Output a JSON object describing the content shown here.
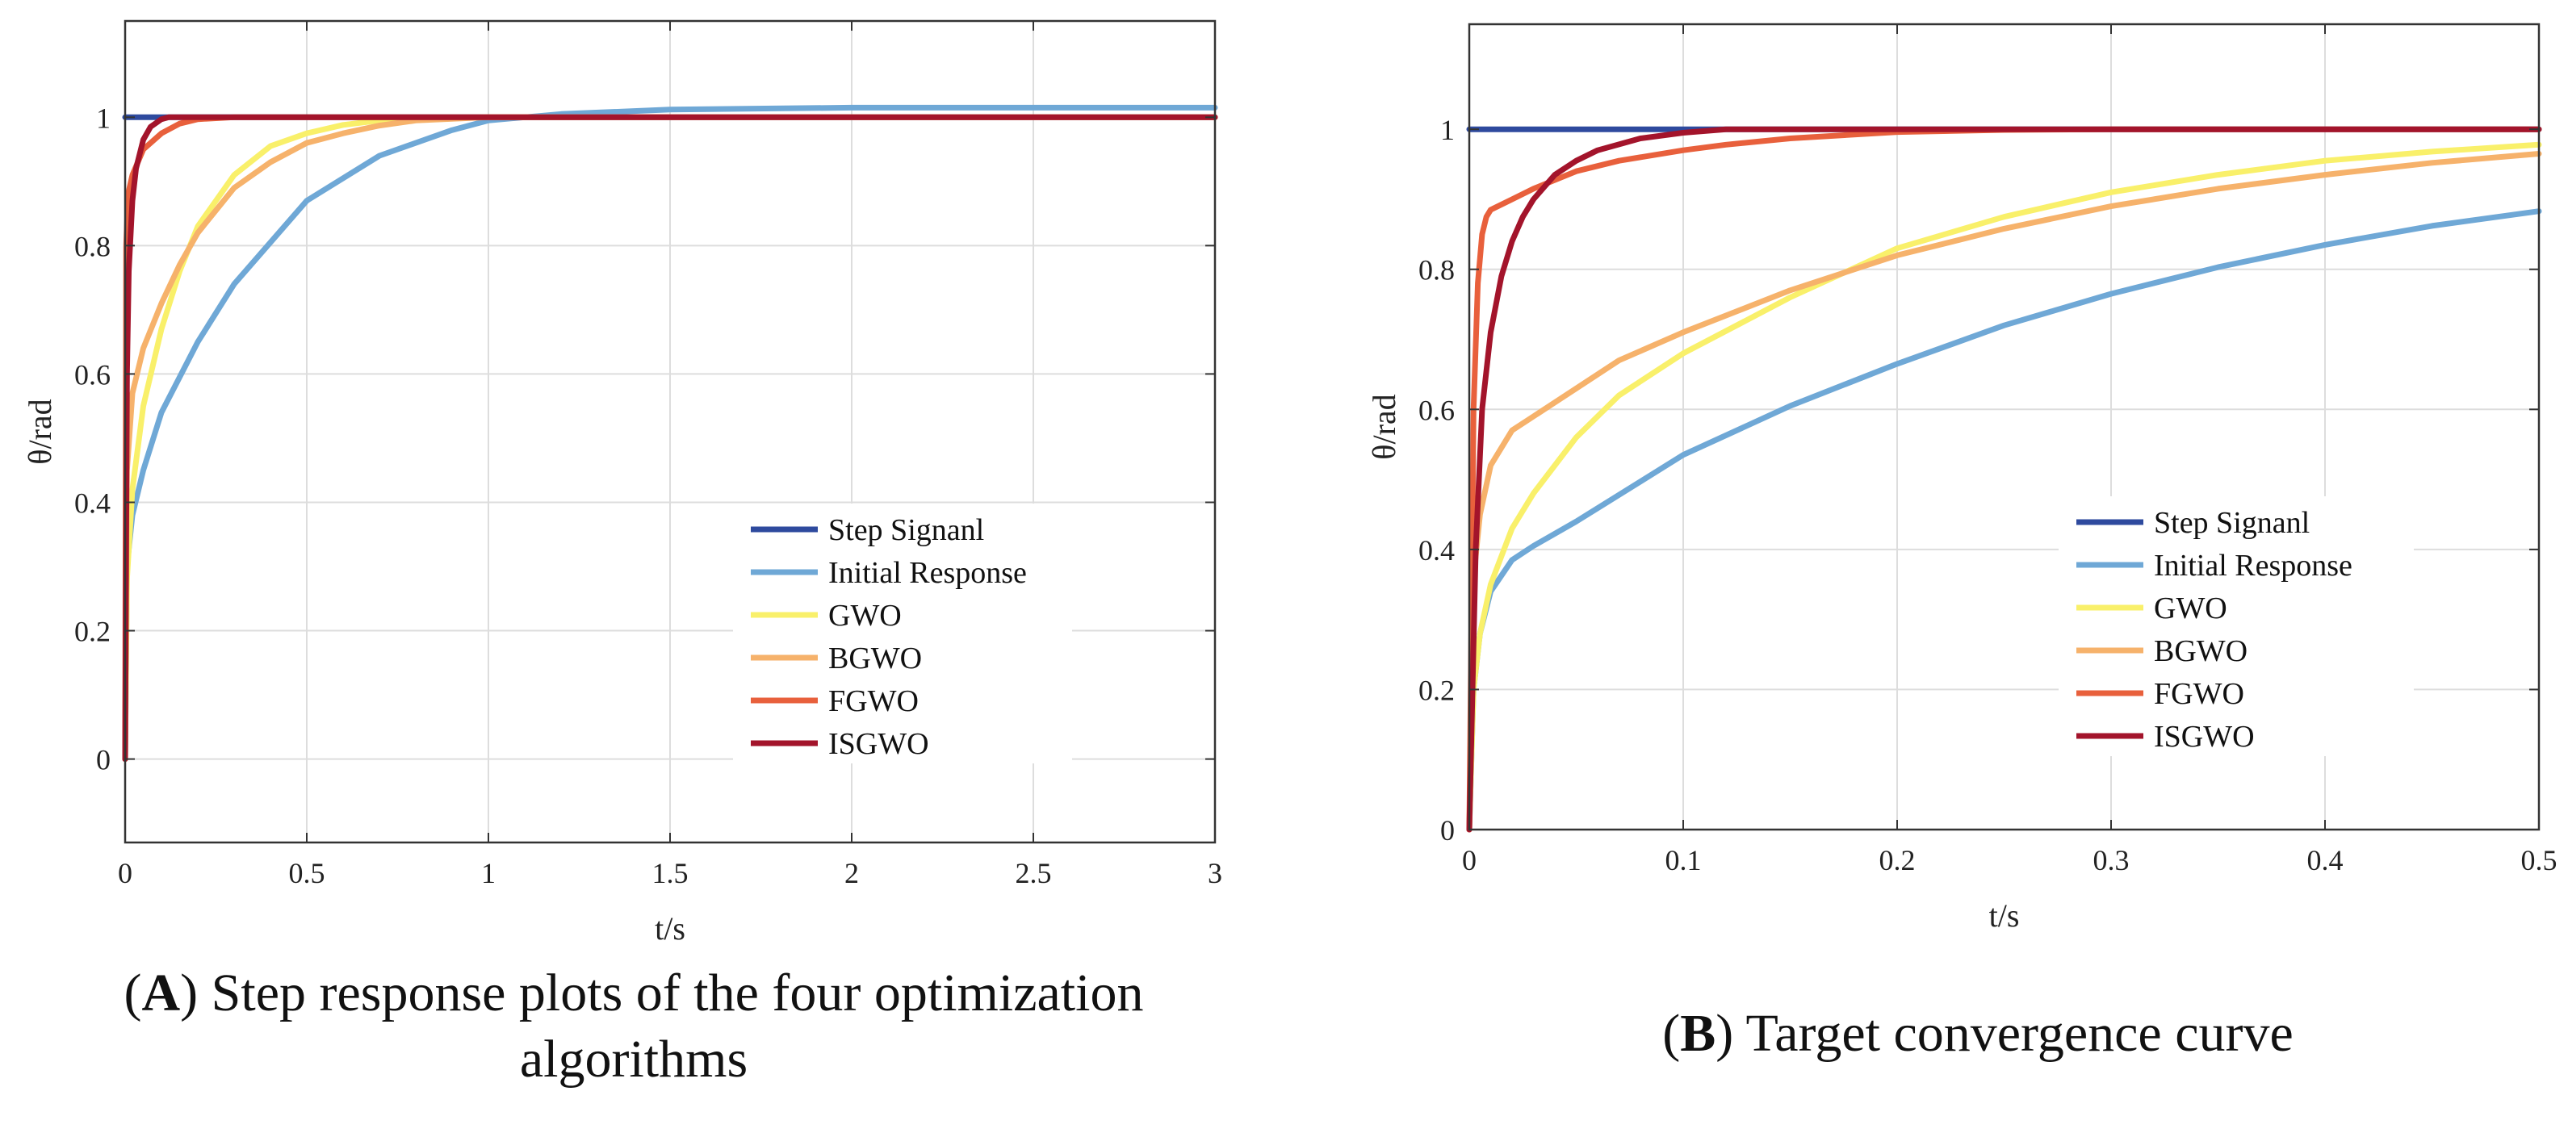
{
  "colors": {
    "Step Signanl": "#2e4a9e",
    "Initial Response": "#6fa8d6",
    "GWO": "#f9f06a",
    "BGWO": "#f6b26b",
    "FGWO": "#e8603c",
    "ISGWO": "#a3142b",
    "grid": "#dddddd",
    "axis": "#333333"
  },
  "captions": [
    {
      "letter": "A",
      "text": " Step response plots of the four optimization algorithms"
    },
    {
      "letter": "B",
      "text": " Target convergence curve"
    }
  ],
  "chart_data": [
    {
      "type": "line",
      "title": "",
      "xlabel": "t/s",
      "ylabel": "θ/rad",
      "xlim": [
        0,
        3
      ],
      "ylim": [
        -0.13,
        1.15
      ],
      "xticks": [
        0,
        0.5,
        1,
        1.5,
        2,
        2.5,
        3
      ],
      "xticklabels": [
        "0",
        "0.5",
        "1",
        "1.5",
        "2",
        "2.5",
        "3"
      ],
      "yticks": [
        0,
        0.2,
        0.4,
        0.6,
        0.8,
        1
      ],
      "yticklabels": [
        "0",
        "0.2",
        "0.4",
        "0.6",
        "0.8",
        "1"
      ],
      "grid": true,
      "legend": "lower-right",
      "series": [
        {
          "name": "Step Signanl",
          "x": [
            0,
            3
          ],
          "y": [
            1,
            1
          ]
        },
        {
          "name": "Initial Response",
          "x": [
            0,
            0.005,
            0.02,
            0.05,
            0.1,
            0.2,
            0.3,
            0.5,
            0.7,
            0.9,
            1.0,
            1.2,
            1.5,
            2.0,
            2.5,
            3.0
          ],
          "y": [
            0,
            0.3,
            0.38,
            0.45,
            0.54,
            0.65,
            0.74,
            0.87,
            0.94,
            0.98,
            0.995,
            1.005,
            1.012,
            1.015,
            1.015,
            1.015
          ]
        },
        {
          "name": "GWO",
          "x": [
            0,
            0.005,
            0.02,
            0.05,
            0.1,
            0.15,
            0.2,
            0.3,
            0.4,
            0.5,
            0.6,
            0.7,
            0.8,
            1.0,
            2.0,
            3.0
          ],
          "y": [
            0,
            0.28,
            0.42,
            0.55,
            0.67,
            0.76,
            0.83,
            0.91,
            0.955,
            0.975,
            0.988,
            0.995,
            0.998,
            1.0,
            1.0,
            1.0
          ]
        },
        {
          "name": "BGWO",
          "x": [
            0,
            0.005,
            0.02,
            0.05,
            0.1,
            0.15,
            0.2,
            0.3,
            0.4,
            0.5,
            0.6,
            0.7,
            0.8,
            1.0,
            2.0,
            3.0
          ],
          "y": [
            0,
            0.45,
            0.57,
            0.64,
            0.71,
            0.77,
            0.82,
            0.89,
            0.93,
            0.96,
            0.975,
            0.987,
            0.995,
            1.0,
            1.0,
            1.0
          ]
        },
        {
          "name": "FGWO",
          "x": [
            0,
            0.003,
            0.008,
            0.02,
            0.05,
            0.1,
            0.15,
            0.2,
            0.3,
            3.0
          ],
          "y": [
            0,
            0.8,
            0.88,
            0.91,
            0.95,
            0.975,
            0.99,
            0.997,
            1.0,
            1.0
          ]
        },
        {
          "name": "ISGWO",
          "x": [
            0,
            0.005,
            0.01,
            0.02,
            0.03,
            0.05,
            0.07,
            0.1,
            0.12,
            3.0
          ],
          "y": [
            0,
            0.6,
            0.76,
            0.87,
            0.92,
            0.965,
            0.985,
            0.997,
            1.0,
            1.0
          ]
        }
      ]
    },
    {
      "type": "line",
      "title": "",
      "xlabel": "t/s",
      "ylabel": "θ/rad",
      "xlim": [
        0,
        0.5
      ],
      "ylim": [
        0,
        1.15
      ],
      "xticks": [
        0,
        0.1,
        0.2,
        0.3,
        0.4,
        0.5
      ],
      "xticklabels": [
        "0",
        "0.1",
        "0.2",
        "0.3",
        "0.4",
        "0.5"
      ],
      "yticks": [
        0,
        0.2,
        0.4,
        0.6,
        0.8,
        1
      ],
      "yticklabels": [
        "0",
        "0.2",
        "0.4",
        "0.6",
        "0.8",
        "1"
      ],
      "grid": true,
      "legend": "lower-right",
      "series": [
        {
          "name": "Step Signanl",
          "x": [
            0,
            0.5
          ],
          "y": [
            1,
            1
          ]
        },
        {
          "name": "Initial Response",
          "x": [
            0,
            0.002,
            0.005,
            0.01,
            0.02,
            0.03,
            0.05,
            0.1,
            0.15,
            0.2,
            0.25,
            0.3,
            0.35,
            0.4,
            0.45,
            0.5
          ],
          "y": [
            0,
            0.2,
            0.28,
            0.34,
            0.385,
            0.405,
            0.44,
            0.535,
            0.605,
            0.665,
            0.72,
            0.765,
            0.803,
            0.835,
            0.862,
            0.883
          ]
        },
        {
          "name": "GWO",
          "x": [
            0,
            0.002,
            0.005,
            0.01,
            0.02,
            0.03,
            0.05,
            0.07,
            0.1,
            0.15,
            0.2,
            0.25,
            0.3,
            0.35,
            0.4,
            0.45,
            0.5
          ],
          "y": [
            0,
            0.2,
            0.28,
            0.35,
            0.43,
            0.48,
            0.56,
            0.62,
            0.68,
            0.76,
            0.83,
            0.875,
            0.91,
            0.935,
            0.955,
            0.968,
            0.978
          ]
        },
        {
          "name": "BGWO",
          "x": [
            0,
            0.002,
            0.005,
            0.01,
            0.02,
            0.03,
            0.05,
            0.07,
            0.1,
            0.15,
            0.2,
            0.25,
            0.3,
            0.35,
            0.4,
            0.45,
            0.5
          ],
          "y": [
            0,
            0.36,
            0.45,
            0.52,
            0.57,
            0.59,
            0.63,
            0.67,
            0.71,
            0.77,
            0.82,
            0.858,
            0.89,
            0.915,
            0.935,
            0.952,
            0.965
          ]
        },
        {
          "name": "FGWO",
          "x": [
            0,
            0.002,
            0.004,
            0.006,
            0.008,
            0.01,
            0.02,
            0.03,
            0.05,
            0.07,
            0.1,
            0.12,
            0.15,
            0.2,
            0.25,
            0.3,
            0.5
          ],
          "y": [
            0,
            0.6,
            0.78,
            0.85,
            0.875,
            0.885,
            0.9,
            0.915,
            0.94,
            0.955,
            0.97,
            0.978,
            0.987,
            0.996,
            0.999,
            1.0,
            1.0
          ]
        },
        {
          "name": "ISGWO",
          "x": [
            0,
            0.003,
            0.006,
            0.01,
            0.015,
            0.02,
            0.025,
            0.03,
            0.04,
            0.05,
            0.06,
            0.08,
            0.1,
            0.12,
            0.5
          ],
          "y": [
            0,
            0.4,
            0.6,
            0.71,
            0.79,
            0.84,
            0.875,
            0.9,
            0.935,
            0.955,
            0.97,
            0.987,
            0.995,
            1.0,
            1.0
          ]
        }
      ]
    }
  ]
}
